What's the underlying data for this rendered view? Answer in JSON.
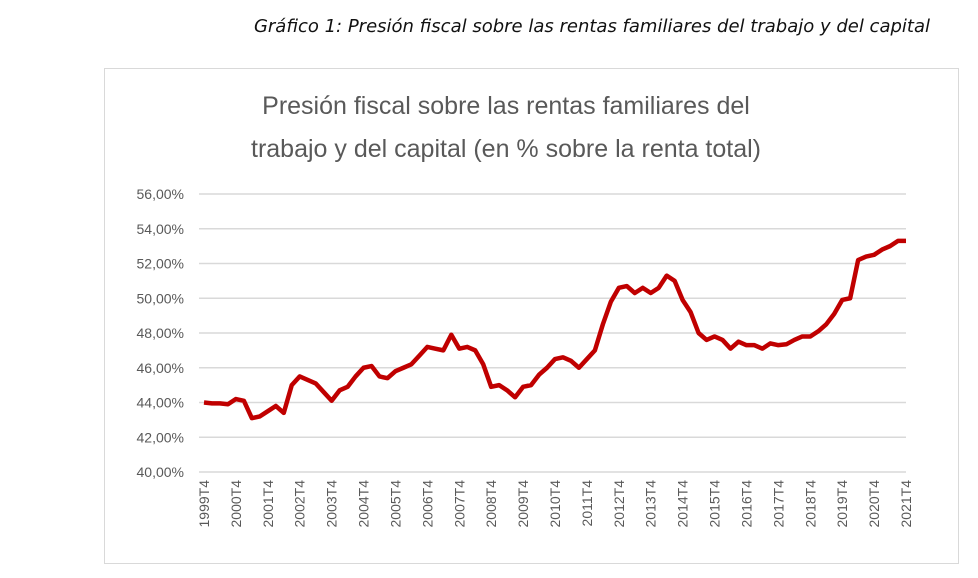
{
  "caption": "Gráfico 1: Presión fiscal sobre las rentas familiares del trabajo y del capital",
  "chart_data": {
    "type": "line",
    "title_lines": [
      "Presión fiscal sobre las rentas familiares del",
      "trabajo y del capital (en % sobre la renta total)"
    ],
    "xlabel": "",
    "ylabel": "",
    "ylim": [
      40,
      56
    ],
    "yticks": [
      "40,00%",
      "42,00%",
      "44,00%",
      "46,00%",
      "48,00%",
      "50,00%",
      "52,00%",
      "54,00%",
      "56,00%"
    ],
    "grid": "horizontal",
    "legend": "none",
    "line_color": "#C00000",
    "xtick_labels": [
      "1999T4",
      "2000T4",
      "2001T4",
      "2002T4",
      "2003T4",
      "2004T4",
      "2005T4",
      "2006T4",
      "2007T4",
      "2008T4",
      "2009T4",
      "2010T4",
      "2011T4",
      "2012T4",
      "2013T4",
      "2014T4",
      "2015T4",
      "2016T4",
      "2017T4",
      "2018T4",
      "2019T4",
      "2020T4",
      "2021T4"
    ],
    "categories": [
      "1999T4",
      "2000T1",
      "2000T2",
      "2000T3",
      "2000T4",
      "2001T1",
      "2001T2",
      "2001T3",
      "2001T4",
      "2002T1",
      "2002T2",
      "2002T3",
      "2002T4",
      "2003T1",
      "2003T2",
      "2003T3",
      "2003T4",
      "2004T1",
      "2004T2",
      "2004T3",
      "2004T4",
      "2005T1",
      "2005T2",
      "2005T3",
      "2005T4",
      "2006T1",
      "2006T2",
      "2006T3",
      "2006T4",
      "2007T1",
      "2007T2",
      "2007T3",
      "2007T4",
      "2008T1",
      "2008T2",
      "2008T3",
      "2008T4",
      "2009T1",
      "2009T2",
      "2009T3",
      "2009T4",
      "2010T1",
      "2010T2",
      "2010T3",
      "2010T4",
      "2011T1",
      "2011T2",
      "2011T3",
      "2011T4",
      "2012T1",
      "2012T2",
      "2012T3",
      "2012T4",
      "2013T1",
      "2013T2",
      "2013T3",
      "2013T4",
      "2014T1",
      "2014T2",
      "2014T3",
      "2014T4",
      "2015T1",
      "2015T2",
      "2015T3",
      "2015T4",
      "2016T1",
      "2016T2",
      "2016T3",
      "2016T4",
      "2017T1",
      "2017T2",
      "2017T3",
      "2017T4",
      "2018T1",
      "2018T2",
      "2018T3",
      "2018T4",
      "2019T1",
      "2019T2",
      "2019T3",
      "2019T4",
      "2020T1",
      "2020T2",
      "2020T3",
      "2020T4",
      "2021T1",
      "2021T2",
      "2021T3",
      "2021T4"
    ],
    "values": [
      44.0,
      43.95,
      43.95,
      43.9,
      44.2,
      44.1,
      43.1,
      43.2,
      43.5,
      43.8,
      43.4,
      45.0,
      45.5,
      45.3,
      45.1,
      44.6,
      44.1,
      44.7,
      44.9,
      45.5,
      46.0,
      46.1,
      45.5,
      45.4,
      45.8,
      46.0,
      46.2,
      46.7,
      47.2,
      47.1,
      47.0,
      47.9,
      47.1,
      47.2,
      47.0,
      46.2,
      44.9,
      45.0,
      44.7,
      44.3,
      44.9,
      45.0,
      45.6,
      46.0,
      46.5,
      46.6,
      46.4,
      46.0,
      46.5,
      47.0,
      48.5,
      49.8,
      50.6,
      50.7,
      50.3,
      50.6,
      50.3,
      50.6,
      51.3,
      51.0,
      49.9,
      49.2,
      48.0,
      47.6,
      47.8,
      47.6,
      47.1,
      47.5,
      47.3,
      47.3,
      47.1,
      47.4,
      47.3,
      47.35,
      47.6,
      47.8,
      47.8,
      48.1,
      48.5,
      49.1,
      49.9,
      50.0,
      52.2,
      52.4,
      52.5,
      52.8,
      53.0,
      53.3,
      53.3
    ]
  }
}
